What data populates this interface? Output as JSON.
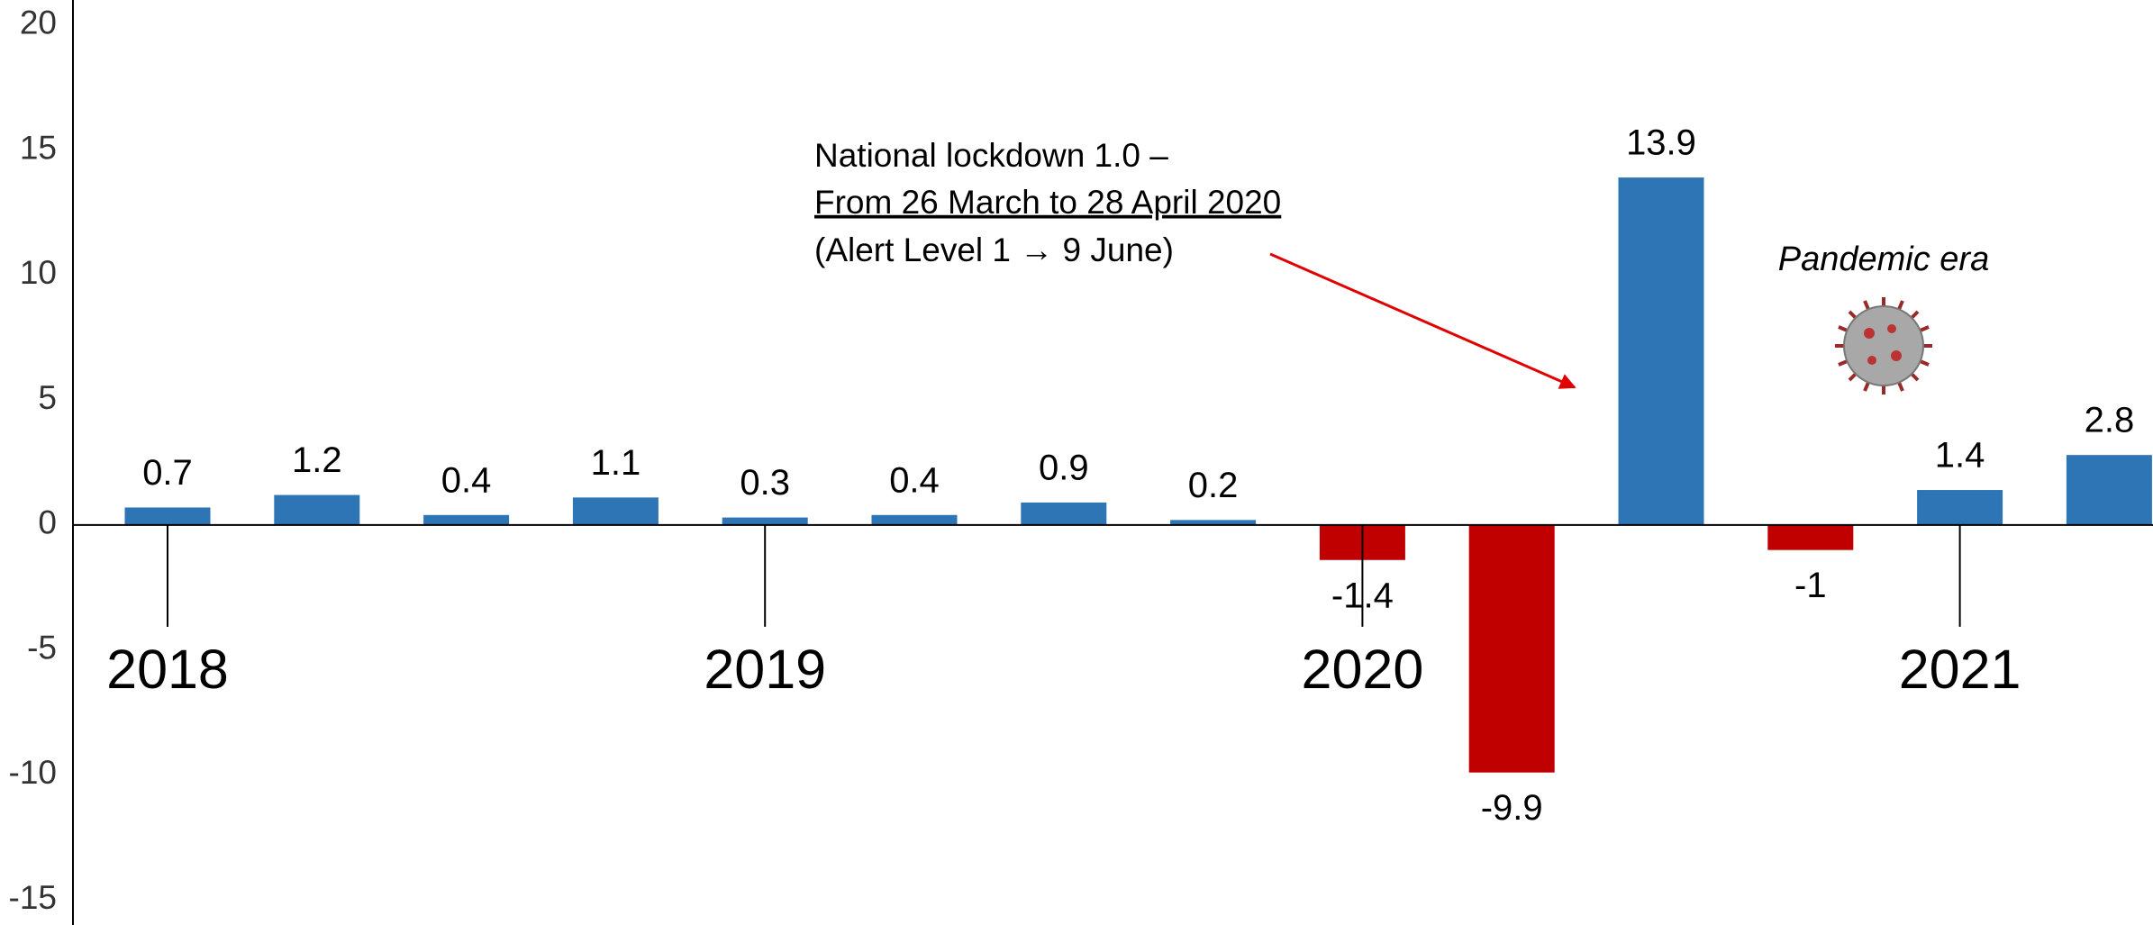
{
  "chart_data": {
    "type": "bar",
    "categories": [
      "2018",
      null,
      null,
      null,
      "2019",
      null,
      null,
      null,
      "2020",
      null,
      null,
      null,
      "2021",
      null
    ],
    "values": [
      0.7,
      1.2,
      0.4,
      1.1,
      0.3,
      0.4,
      0.9,
      0.2,
      -1.4,
      -9.9,
      13.9,
      -1,
      1.4,
      2.8
    ],
    "positive_color": "#2e75b6",
    "negative_color": "#c00000",
    "ylim": [
      -16,
      21
    ],
    "yticks": [
      -15,
      -10,
      -5,
      0,
      5,
      10,
      15,
      20
    ],
    "grid": false,
    "annotation_lines": [
      "National lockdown 1.0 –",
      "From 26 March to 28 April 2020",
      "(Alert Level 1 → 9 June)"
    ],
    "era_label": "Pandemic era"
  }
}
